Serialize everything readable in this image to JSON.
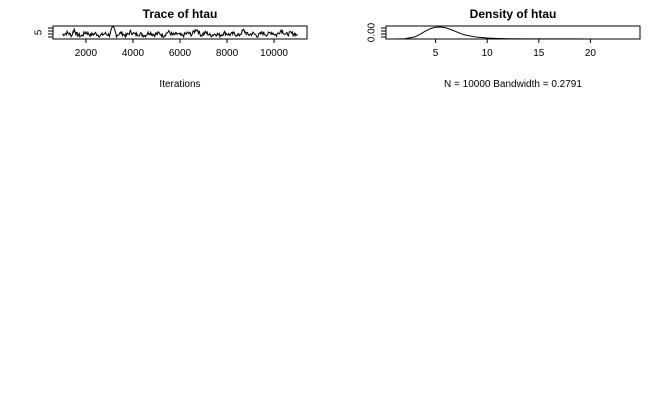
{
  "chart_data": [
    {
      "type": "line",
      "title": "Trace of htau",
      "xlabel": "Iterations",
      "ylabel": "",
      "x_ticks": [
        2000,
        4000,
        6000,
        8000,
        10000
      ],
      "x_tick_labels": [
        "2000",
        "4000",
        "6000",
        "8000",
        "10000"
      ],
      "y_ticks": [
        5
      ],
      "y_tick_labels": [
        "5"
      ],
      "xlim": [
        600,
        11400
      ],
      "ylim": [
        3,
        10
      ],
      "series": [
        {
          "values_note": "trace of 10000 MCMC iterations from 1001 to 11000, centred near 5.5",
          "x_start": 1001,
          "x_end": 11000,
          "points": [
            [
              1001,
              5.3
            ],
            [
              1200,
              6.4
            ],
            [
              1400,
              5.0
            ],
            [
              1500,
              8.2
            ],
            [
              1600,
              5.6
            ],
            [
              1800,
              4.5
            ],
            [
              2000,
              6.7
            ],
            [
              2200,
              5.1
            ],
            [
              2400,
              6.0
            ],
            [
              2600,
              4.8
            ],
            [
              2800,
              5.9
            ],
            [
              3000,
              5.2
            ],
            [
              3150,
              9.8
            ],
            [
              3300,
              5.1
            ],
            [
              3500,
              6.3
            ],
            [
              3700,
              4.7
            ],
            [
              3900,
              6.8
            ],
            [
              4100,
              5.4
            ],
            [
              4300,
              5.8
            ],
            [
              4500,
              4.9
            ],
            [
              4700,
              6.6
            ],
            [
              4900,
              5.3
            ],
            [
              5100,
              6.1
            ],
            [
              5300,
              4.8
            ],
            [
              5500,
              6.9
            ],
            [
              5700,
              5.2
            ],
            [
              5900,
              5.7
            ],
            [
              6100,
              4.6
            ],
            [
              6300,
              6.2
            ],
            [
              6500,
              5.5
            ],
            [
              6700,
              8.4
            ],
            [
              6900,
              5.1
            ],
            [
              7100,
              6.5
            ],
            [
              7300,
              4.9
            ],
            [
              7500,
              5.8
            ],
            [
              7700,
              5.0
            ],
            [
              7900,
              6.4
            ],
            [
              8100,
              5.3
            ],
            [
              8300,
              5.9
            ],
            [
              8500,
              4.8
            ],
            [
              8700,
              7.6
            ],
            [
              8900,
              5.2
            ],
            [
              9100,
              6.0
            ],
            [
              9300,
              4.7
            ],
            [
              9500,
              6.3
            ],
            [
              9700,
              5.4
            ],
            [
              9900,
              6.6
            ],
            [
              10100,
              5.0
            ],
            [
              10300,
              7.9
            ],
            [
              10500,
              5.3
            ],
            [
              10700,
              6.1
            ],
            [
              11000,
              5.4
            ]
          ]
        }
      ]
    },
    {
      "type": "line",
      "title": "Density of htau",
      "xlabel": "N = 10000   Bandwidth = 0.2791",
      "ylabel": "",
      "x_ticks": [
        5,
        10,
        15,
        20
      ],
      "x_tick_labels": [
        "5",
        "10",
        "15",
        "20"
      ],
      "y_ticks": [
        0.0
      ],
      "y_tick_labels": [
        "0.00"
      ],
      "xlim": [
        0.2,
        24.8
      ],
      "ylim": [
        0,
        0.25
      ],
      "series": [
        {
          "points": [
            [
              1.0,
              0.0
            ],
            [
              2.0,
              0.005
            ],
            [
              3.0,
              0.04
            ],
            [
              3.5,
              0.09
            ],
            [
              4.0,
              0.15
            ],
            [
              4.5,
              0.2
            ],
            [
              5.0,
              0.225
            ],
            [
              5.5,
              0.23
            ],
            [
              6.0,
              0.215
            ],
            [
              6.5,
              0.18
            ],
            [
              7.0,
              0.14
            ],
            [
              7.5,
              0.1
            ],
            [
              8.0,
              0.07
            ],
            [
              9.0,
              0.035
            ],
            [
              10.0,
              0.018
            ],
            [
              11.0,
              0.01
            ],
            [
              12.0,
              0.006
            ],
            [
              14.0,
              0.003
            ],
            [
              16.0,
              0.002
            ],
            [
              18.0,
              0.0015
            ],
            [
              20.0,
              0.001
            ],
            [
              22.0,
              0.0008
            ],
            [
              24.0,
              0.0005
            ]
          ]
        }
      ]
    }
  ]
}
